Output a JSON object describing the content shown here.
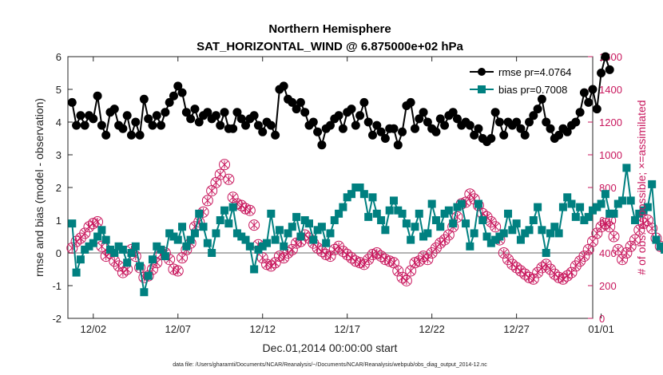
{
  "chart_data": {
    "type": "line",
    "title": "Northern Hemisphere",
    "subtitle": "SAT_HORIZONTAL_WIND @ 6.875000e+02 hPa",
    "xlabel": "Dec.01,2014 00:00:00 start",
    "ylabel": "rmse and bias (model - observation)",
    "y2label": "# of obs: o=possible; ×=assimilated",
    "footnote": "data file: /Users/gharamti/Documents/NCAR/Reanalysis/~/Documents/NCAR/Reanalysis/webpub/obs_diag_output_2014-12.nc",
    "xlim": [
      0.5,
      31.5
    ],
    "ylim": [
      -2,
      6
    ],
    "y2lim": [
      0,
      1600
    ],
    "xticks": [
      2,
      7,
      12,
      17,
      22,
      27,
      32
    ],
    "xtick_labels": [
      "12/02",
      "12/07",
      "12/12",
      "12/17",
      "12/22",
      "12/27",
      "01/01"
    ],
    "yticks": [
      -2,
      -1,
      0,
      1,
      2,
      3,
      4,
      5,
      6
    ],
    "y2ticks": [
      0,
      200,
      400,
      600,
      800,
      1000,
      1200,
      1400,
      1600
    ],
    "legend_position": "top-right",
    "series": [
      {
        "name": "rmse",
        "legend": "rmse pr=4.0764",
        "color": "#000000",
        "marker": "circle",
        "x_start": 0.75,
        "x_step": 0.25,
        "values": [
          4.6,
          3.9,
          4.2,
          3.9,
          4.2,
          4.1,
          4.8,
          3.9,
          3.6,
          4.3,
          4.4,
          3.9,
          3.8,
          4.2,
          3.6,
          4.0,
          3.6,
          4.7,
          4.1,
          3.9,
          4.2,
          3.9,
          4.3,
          4.6,
          4.8,
          5.1,
          4.9,
          4.3,
          4.1,
          4.4,
          4.0,
          4.2,
          4.3,
          4.1,
          4.2,
          3.9,
          4.3,
          3.8,
          3.8,
          4.3,
          4.1,
          3.9,
          4.1,
          4.2,
          3.9,
          3.7,
          4.0,
          3.9,
          3.6,
          5.0,
          5.1,
          4.7,
          4.6,
          4.4,
          4.6,
          4.3,
          3.9,
          4.0,
          3.7,
          3.3,
          3.8,
          3.9,
          4.1,
          4.2,
          3.8,
          4.3,
          4.4,
          3.9,
          4.2,
          4.6,
          4.0,
          3.6,
          3.9,
          3.7,
          3.5,
          3.8,
          3.8,
          3.3,
          3.7,
          4.5,
          4.6,
          3.8,
          4.1,
          4.3,
          4.0,
          3.8,
          3.7,
          4.1,
          3.9,
          4.2,
          4.3,
          4.1,
          3.9,
          4.0,
          3.9,
          3.6,
          3.8,
          3.5,
          3.4,
          3.5,
          4.3,
          4.0,
          3.6,
          4.0,
          3.9,
          4.0,
          3.8,
          3.6,
          4.0,
          4.2,
          4.4,
          4.7,
          4.0,
          3.8,
          3.5,
          3.6,
          3.8,
          3.7,
          3.9,
          4.0,
          4.3,
          4.9,
          4.6,
          5.0,
          4.4,
          5.5,
          6.0,
          5.6
        ],
        "rendered_values": "all"
      },
      {
        "name": "bias",
        "legend": "bias pr=0.7008",
        "color": "#008080",
        "marker": "square",
        "x_start": 0.75,
        "x_step": 0.25,
        "values": [
          0.9,
          -0.6,
          -0.2,
          0.1,
          0.2,
          0.3,
          0.5,
          0.7,
          0.4,
          0.1,
          0.0,
          0.2,
          0.1,
          -0.3,
          0.0,
          0.2,
          -0.4,
          -1.2,
          -0.7,
          -0.2,
          0.2,
          0.1,
          -0.1,
          0.6,
          0.5,
          0.4,
          0.8,
          0.2,
          0.4,
          0.6,
          1.2,
          0.8,
          0.3,
          0.0,
          0.6,
          1.0,
          1.3,
          0.9,
          1.4,
          0.6,
          0.5,
          0.4,
          0.2,
          -0.5,
          0.1,
          0.2,
          0.3,
          1.2,
          0.4,
          0.7,
          0.2,
          0.6,
          0.8,
          1.1,
          0.5,
          1.0,
          0.9,
          0.4,
          0.7,
          0.8,
          0.3,
          0.6,
          1.0,
          1.2,
          1.4,
          1.7,
          1.8,
          2.0,
          2.0,
          1.8,
          1.1,
          1.7,
          1.2,
          1.0,
          0.7,
          1.3,
          1.6,
          1.3,
          1.2,
          0.9,
          0.4,
          0.8,
          1.2,
          0.5,
          0.6,
          1.5,
          1.0,
          0.8,
          1.2,
          1.3,
          0.9,
          1.4,
          1.5,
          0.9,
          0.2,
          0.6,
          1.5,
          1.0,
          0.5,
          0.3,
          0.4,
          0.5,
          0.6,
          1.2,
          0.7,
          0.9,
          0.4,
          0.6,
          0.7,
          1.0,
          1.4,
          0.7,
          0.0,
          0.6,
          0.8,
          0.6,
          1.4,
          1.7,
          1.5,
          1.1,
          1.4,
          1.0,
          1.1,
          1.3,
          1.4,
          1.5,
          1.8,
          1.2,
          1.2,
          1.5,
          1.6,
          2.6,
          1.6,
          1.0,
          1.2,
          1.3,
          1.4,
          2.1,
          0.4,
          0.2,
          0.1,
          1.8
        ],
        "rendered_values": "first 128"
      },
      {
        "name": "obs possible",
        "axis": "right",
        "color": "#c8175d",
        "marker": "circle-open",
        "x_start": 0.75,
        "x_step": 0.25,
        "values": [
          430,
          470,
          490,
          520,
          560,
          580,
          590,
          440,
          380,
          400,
          350,
          320,
          280,
          300,
          420,
          380,
          310,
          250,
          260,
          300,
          340,
          390,
          400,
          360,
          300,
          290,
          370,
          420,
          460,
          560,
          590,
          650,
          720,
          780,
          830,
          880,
          940,
          850,
          740,
          700,
          690,
          670,
          660,
          570,
          450,
          370,
          330,
          320,
          340,
          380,
          370,
          400,
          420,
          460,
          470,
          510,
          490,
          460,
          430,
          410,
          390,
          380,
          420,
          440,
          410,
          390,
          370,
          350,
          340,
          330,
          360,
          390,
          400,
          380,
          360,
          350,
          340,
          290,
          250,
          230,
          290,
          340,
          350,
          380,
          360,
          400,
          430,
          460,
          480,
          510,
          560,
          620,
          700,
          710,
          760,
          730,
          690,
          640,
          620,
          590,
          560,
          480,
          400,
          360,
          330,
          310,
          290,
          270,
          250,
          240,
          280,
          310,
          330,
          300,
          270,
          250,
          240,
          260,
          280,
          320,
          350,
          380,
          420,
          470,
          520,
          560,
          580,
          560,
          500,
          420,
          360,
          400,
          440,
          480,
          540,
          580,
          600,
          550,
          490,
          440,
          430,
          440,
          500,
          0
        ],
        "rendered_values": "first 128"
      },
      {
        "name": "obs assimilated",
        "axis": "right",
        "color": "#c8175d",
        "marker": "cross",
        "same_as": "obs possible"
      }
    ]
  }
}
